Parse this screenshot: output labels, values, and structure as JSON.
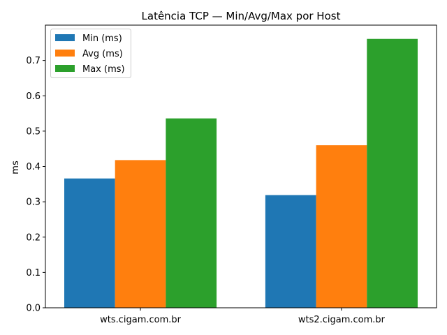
{
  "chart_data": {
    "type": "bar",
    "title": "Latência TCP — Min/Avg/Max por Host",
    "xlabel": "",
    "ylabel": "ms",
    "categories": [
      "wts.cigam.com.br",
      "wts2.cigam.com.br"
    ],
    "series": [
      {
        "name": "Min (ms)",
        "values": [
          0.366,
          0.319
        ],
        "color": "#1f77b4"
      },
      {
        "name": "Avg (ms)",
        "values": [
          0.418,
          0.46
        ],
        "color": "#ff7f0e"
      },
      {
        "name": "Max (ms)",
        "values": [
          0.536,
          0.761
        ],
        "color": "#2ca02c"
      }
    ],
    "ylim": [
      0,
      0.8
    ],
    "yticks": [
      "0.0",
      "0.1",
      "0.2",
      "0.3",
      "0.4",
      "0.5",
      "0.6",
      "0.7"
    ],
    "grid": false,
    "legend": "top-left"
  }
}
